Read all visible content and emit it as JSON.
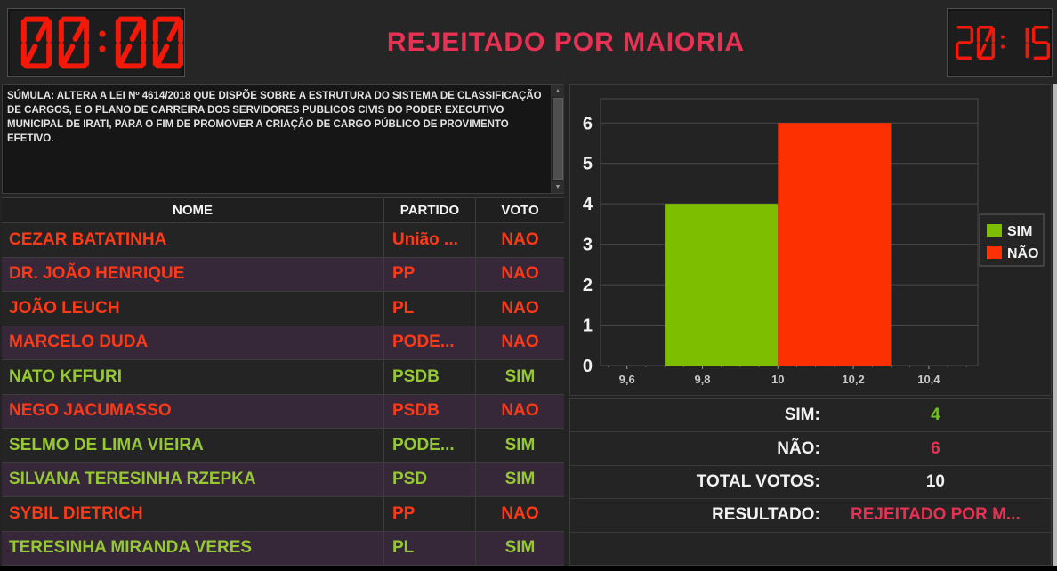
{
  "header": {
    "session_timer": "00:00",
    "title": "REJEITADO POR MAIORIA",
    "clock": "20:15"
  },
  "icons": {
    "scroll_up": "▲",
    "scroll_down": "▼"
  },
  "sumula": {
    "text": "SÚMULA: ALTERA A LEI Nº 4614/2018 QUE DISPÕE SOBRE A ESTRUTURA DO SISTEMA DE CLASSIFICAÇÃO DE CARGOS, E O PLANO DE CARREIRA DOS SERVIDORES PUBLICOS CIVIS DO PODER EXECUTIVO MUNICIPAL DE IRATI, PARA O FIM DE PROMOVER A CRIAÇÃO DE CARGO PÚBLICO DE PROVIMENTO EFETIVO."
  },
  "table": {
    "headers": [
      "NOME",
      "PARTIDO",
      "VOTO"
    ],
    "rows": [
      {
        "nome": "CEZAR BATATINHA",
        "partido": "União ...",
        "voto": "NAO"
      },
      {
        "nome": "DR. JOÃO HENRIQUE",
        "partido": "PP",
        "voto": "NAO"
      },
      {
        "nome": "JOÃO LEUCH",
        "partido": "PL",
        "voto": "NAO"
      },
      {
        "nome": "MARCELO DUDA",
        "partido": "PODE...",
        "voto": "NAO"
      },
      {
        "nome": "NATO KFFURI",
        "partido": "PSDB",
        "voto": "SIM"
      },
      {
        "nome": "NEGO JACUMASSO",
        "partido": "PSDB",
        "voto": "NAO"
      },
      {
        "nome": "SELMO DE LIMA VIEIRA",
        "partido": "PODE...",
        "voto": "SIM"
      },
      {
        "nome": "SILVANA TERESINHA RZEPKA",
        "partido": "PSD",
        "voto": "SIM"
      },
      {
        "nome": "SYBIL DIETRICH",
        "partido": "PP",
        "voto": "NAO"
      },
      {
        "nome": "TERESINHA MIRANDA VERES",
        "partido": "PL",
        "voto": "SIM"
      }
    ]
  },
  "chart_data": {
    "type": "bar",
    "title": "",
    "xlabel": "",
    "ylabel": "",
    "series": [
      {
        "name": "SIM",
        "value": 4,
        "color": "#7dbe00",
        "x_range": [
          9.7,
          10.0
        ]
      },
      {
        "name": "NÃO",
        "value": 6,
        "color": "#fc3000",
        "x_range": [
          10.0,
          10.3
        ]
      }
    ],
    "y_ticks": [
      0,
      1,
      2,
      3,
      4,
      5,
      6
    ],
    "ylim": [
      0,
      6.6
    ],
    "x_ticks": [
      {
        "value": 9.6,
        "label": "9,6"
      },
      {
        "value": 9.8,
        "label": "9,8"
      },
      {
        "value": 10.0,
        "label": "10"
      },
      {
        "value": 10.2,
        "label": "10,2"
      },
      {
        "value": 10.4,
        "label": "10,4"
      }
    ],
    "xlim": [
      9.53,
      10.53
    ],
    "grid": true,
    "legend": [
      "SIM",
      "NÃO"
    ],
    "legend_position": "right"
  },
  "summary": {
    "rows": [
      {
        "label": "SIM:",
        "value": "4",
        "color": "green"
      },
      {
        "label": "NÃO:",
        "value": "6",
        "color": "crimson"
      },
      {
        "label": "TOTAL VOTOS:",
        "value": "10",
        "color": "white"
      },
      {
        "label": "RESULTADO:",
        "value": "REJEITADO POR M...",
        "color": "crimson"
      },
      {
        "label": "",
        "value": "",
        "color": "white"
      }
    ]
  },
  "colors": {
    "led_red": "#f2190a",
    "title_crimson": "#e73253",
    "bar_sim": "#7dbe00",
    "bar_nao": "#fc3000",
    "text_sim": "#95c832",
    "text_nao": "#fb3a17",
    "row_dark": "#242424",
    "row_purple": "#362839"
  }
}
